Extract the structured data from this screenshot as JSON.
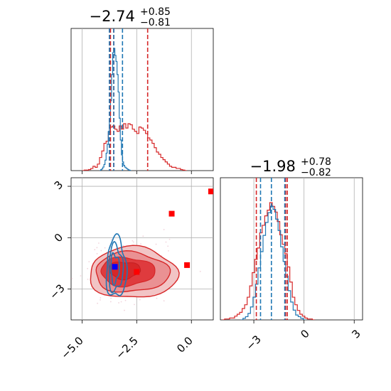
{
  "chart_data": {
    "type": "corner",
    "parameters": [
      "p0",
      "p1"
    ],
    "panels": [
      {
        "panel": "marginal-p0",
        "type": "histogram",
        "title": {
          "median": "−2.74",
          "upper": "+0.85",
          "lower": "−0.81"
        },
        "xlim": [
          -5.5,
          1.0
        ],
        "series": [
          {
            "color": "#d62728",
            "quantiles": [
              -3.7,
              -3.55,
              -2.0
            ],
            "bins_x": [
              -5.0,
              -4.9,
              -4.8,
              -4.7,
              -4.6,
              -4.5,
              -4.4,
              -4.3,
              -4.2,
              -4.1,
              -4.0,
              -3.9,
              -3.8,
              -3.7,
              -3.6,
              -3.5,
              -3.4,
              -3.3,
              -3.2,
              -3.1,
              -3.0,
              -2.9,
              -2.8,
              -2.7,
              -2.6,
              -2.5,
              -2.4,
              -2.3,
              -2.2,
              -2.1,
              -2.0,
              -1.9,
              -1.8,
              -1.7,
              -1.6,
              -1.5,
              -1.4,
              -1.3,
              -1.2,
              -1.1,
              -1.0,
              -0.9,
              -0.8,
              -0.7,
              -0.6,
              -0.5,
              -0.4,
              -0.3
            ],
            "counts": [
              0,
              0.5,
              0.5,
              1,
              2,
              4,
              3,
              6,
              12,
              18,
              25,
              27,
              35,
              40,
              41,
              38,
              36,
              41,
              38,
              43,
              39,
              43,
              42,
              38,
              36,
              34,
              40,
              39,
              37,
              34,
              30,
              28,
              25,
              21,
              17,
              15,
              12,
              10,
              8,
              6,
              4,
              3,
              3,
              2,
              2,
              1,
              0.5,
              0
            ]
          },
          {
            "color": "#1f77b4",
            "quantiles": [
              -3.75,
              -3.55,
              -3.15
            ],
            "bins_x": [
              -4.2,
              -4.15,
              -4.1,
              -4.05,
              -4.0,
              -3.95,
              -3.9,
              -3.85,
              -3.8,
              -3.75,
              -3.7,
              -3.65,
              -3.6,
              -3.55,
              -3.5,
              -3.45,
              -3.4,
              -3.35,
              -3.3,
              -3.25,
              -3.2,
              -3.15,
              -3.1,
              -3.05,
              -3.0,
              -2.95,
              -2.9,
              -2.85,
              -2.8
            ],
            "counts": [
              0,
              1,
              2,
              4,
              7,
              12,
              20,
              30,
              45,
              58,
              80,
              110,
              135,
              140,
              132,
              125,
              110,
              90,
              60,
              35,
              18,
              10,
              6,
              4,
              3,
              2,
              1,
              0.5,
              0
            ]
          }
        ]
      },
      {
        "panel": "marginal-p1",
        "type": "histogram",
        "title": {
          "median": "−1.98",
          "upper": "+0.78",
          "lower": "−0.82"
        },
        "xlim": [
          -5.0,
          3.5
        ],
        "xticks": [
          "−3",
          "0",
          "3"
        ],
        "series": [
          {
            "color": "#d62728",
            "quantiles": [
              -2.85,
              -1.1,
              -1.0
            ],
            "bins_x": [
              -4.9,
              -4.75,
              -4.6,
              -4.45,
              -4.3,
              -4.15,
              -4.0,
              -3.85,
              -3.7,
              -3.55,
              -3.4,
              -3.25,
              -3.1,
              -2.95,
              -2.8,
              -2.65,
              -2.5,
              -2.35,
              -2.2,
              -2.05,
              -1.9,
              -1.75,
              -1.6,
              -1.45,
              -1.3,
              -1.15,
              -1.0,
              -0.85,
              -0.7,
              -0.55,
              -0.4,
              -0.25,
              -0.1,
              0.05,
              0.2,
              0.35,
              0.5
            ],
            "counts": [
              0,
              0.5,
              0.5,
              1,
              1,
              2,
              3,
              4,
              6,
              8,
              12,
              18,
              25,
              32,
              38,
              46,
              50,
              55,
              58,
              62,
              60,
              57,
              52,
              45,
              40,
              35,
              28,
              20,
              12,
              8,
              5,
              3,
              2,
              1,
              0.5,
              0.5,
              0
            ]
          },
          {
            "color": "#1f77b4",
            "quantiles": [
              -2.6,
              -1.95,
              -1.15
            ],
            "bins_x": [
              -3.8,
              -3.65,
              -3.5,
              -3.35,
              -3.2,
              -3.05,
              -2.9,
              -2.75,
              -2.6,
              -2.45,
              -2.3,
              -2.15,
              -2.0,
              -1.85,
              -1.7,
              -1.55,
              -1.4,
              -1.25,
              -1.1,
              -0.95,
              -0.8,
              -0.65,
              -0.5,
              -0.35,
              -0.2,
              -0.05
            ],
            "counts": [
              0,
              1,
              2,
              4,
              8,
              14,
              22,
              32,
              42,
              52,
              60,
              66,
              70,
              68,
              62,
              55,
              45,
              36,
              27,
              18,
              11,
              6,
              3,
              2,
              1,
              0
            ]
          }
        ]
      },
      {
        "panel": "joint-p0-p1",
        "type": "contour",
        "xlim": [
          -5.5,
          1.0
        ],
        "ylim": [
          -4.8,
          3.5
        ],
        "xticks": [
          "−5.0",
          "−2.5",
          "0.0"
        ],
        "yticks": [
          "3",
          "0",
          "−3"
        ],
        "series": [
          {
            "color": "#d62728",
            "center": [
              -2.74,
              -1.98
            ],
            "points": [
              [
                -2.5,
                -2.0
              ],
              [
                -0.9,
                1.4
              ],
              [
                -0.2,
                -1.6
              ],
              [
                0.9,
                2.7
              ]
            ]
          },
          {
            "color": "#1f77b4",
            "center": [
              -3.5,
              -1.7
            ],
            "points": [
              [
                -3.5,
                -1.7
              ]
            ]
          }
        ]
      }
    ]
  }
}
